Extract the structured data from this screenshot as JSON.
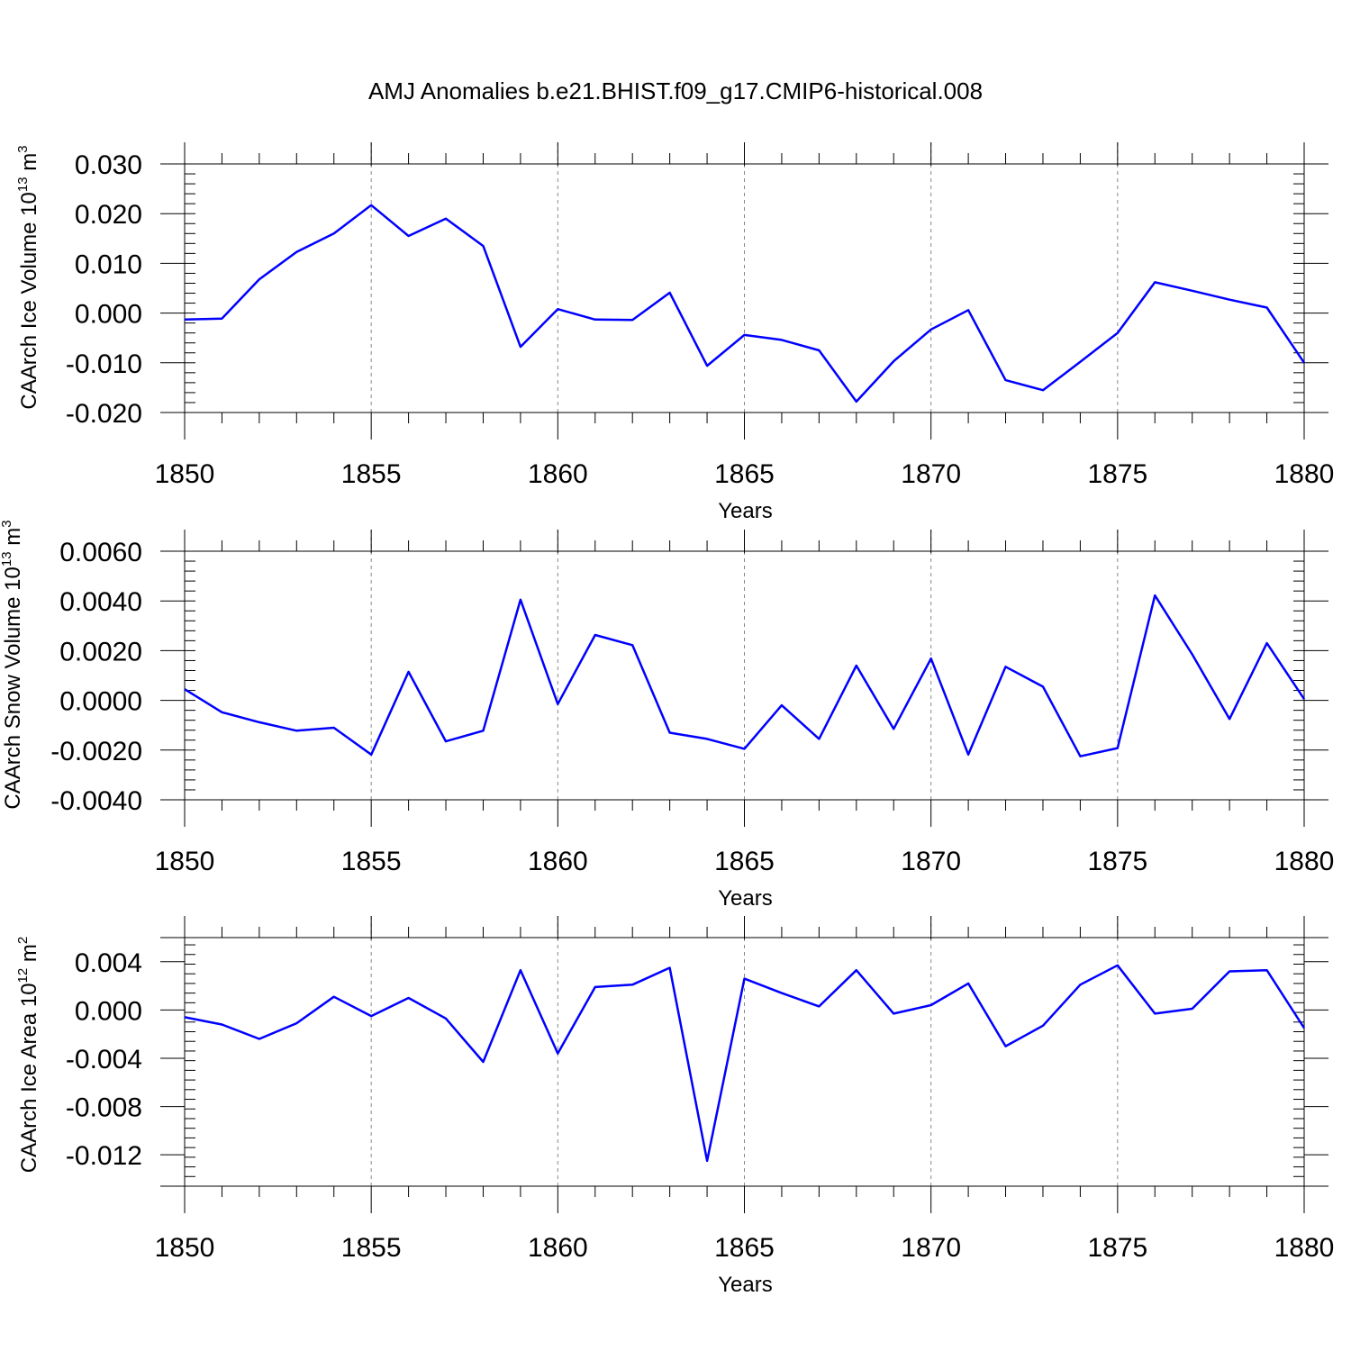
{
  "figure": {
    "title": "AMJ Anomalies b.e21.BHIST.f09_g17.CMIP6-historical.008"
  },
  "chart_data": [
    {
      "type": "line",
      "xlabel": "Years",
      "ylabel": "CAArch Ice Volume 10",
      "ylabel_sup": "13",
      "ylabel_unit": " m",
      "ylabel_unit_sup": "3",
      "xlim": [
        1850,
        1880
      ],
      "ylim": [
        -0.02,
        0.03
      ],
      "plot_ylim": [
        -0.02,
        0.03
      ],
      "xticks": [
        1850,
        1855,
        1860,
        1865,
        1870,
        1875,
        1880
      ],
      "yticks": [
        -0.02,
        -0.01,
        0.0,
        0.01,
        0.02,
        0.03
      ],
      "ytick_labels": [
        "-0.020",
        "-0.010",
        "0.000",
        "0.010",
        "0.020",
        "0.030"
      ],
      "grid": "dashed vertical at major x ticks",
      "line_color": "#0000ff",
      "x": [
        1850,
        1851,
        1852,
        1853,
        1854,
        1855,
        1856,
        1857,
        1858,
        1859,
        1860,
        1861,
        1862,
        1863,
        1864,
        1865,
        1866,
        1867,
        1868,
        1869,
        1870,
        1871,
        1872,
        1873,
        1874,
        1875,
        1876,
        1877,
        1878,
        1879,
        1880
      ],
      "values": [
        -0.0013,
        -0.0011,
        0.0068,
        0.0123,
        0.016,
        0.0217,
        0.0155,
        0.019,
        0.0135,
        -0.0068,
        0.0008,
        -0.0013,
        -0.0014,
        0.0041,
        -0.0106,
        -0.0044,
        -0.0054,
        -0.0075,
        -0.0178,
        -0.0097,
        -0.0033,
        0.0006,
        -0.0135,
        -0.0155,
        -0.0098,
        -0.004,
        0.0062,
        0.0045,
        0.0027,
        0.0011,
        -0.01
      ]
    },
    {
      "type": "line",
      "xlabel": "Years",
      "ylabel": "CAArch Snow Volume 10",
      "ylabel_sup": "13",
      "ylabel_unit": " m",
      "ylabel_unit_sup": "3",
      "xlim": [
        1850,
        1880
      ],
      "ylim": [
        -0.004,
        0.006
      ],
      "plot_ylim": [
        -0.004,
        0.006
      ],
      "xticks": [
        1850,
        1855,
        1860,
        1865,
        1870,
        1875,
        1880
      ],
      "yticks": [
        -0.004,
        -0.002,
        0.0,
        0.002,
        0.004,
        0.006
      ],
      "ytick_labels": [
        "-0.0040",
        "-0.0020",
        "0.0000",
        "0.0020",
        "0.0040",
        "0.0060"
      ],
      "grid": "dashed vertical at major x ticks",
      "line_color": "#0000ff",
      "x": [
        1850,
        1851,
        1852,
        1853,
        1854,
        1855,
        1856,
        1857,
        1858,
        1859,
        1860,
        1861,
        1862,
        1863,
        1864,
        1865,
        1866,
        1867,
        1868,
        1869,
        1870,
        1871,
        1872,
        1873,
        1874,
        1875,
        1876,
        1877,
        1878,
        1879,
        1880
      ],
      "values": [
        0.00045,
        -0.00048,
        -0.00088,
        -0.00122,
        -0.0011,
        -0.00218,
        0.00115,
        -0.00165,
        -0.00122,
        0.00405,
        -0.00015,
        0.00263,
        0.00222,
        -0.0013,
        -0.00155,
        -0.00195,
        -0.0002,
        -0.00155,
        0.0014,
        -0.00115,
        0.00168,
        -0.00218,
        0.00135,
        0.00055,
        -0.00225,
        -0.00192,
        0.00422,
        0.00185,
        -0.00075,
        0.0023,
        5e-05
      ]
    },
    {
      "type": "line",
      "xlabel": "Years",
      "ylabel": "CAArch Ice Area 10",
      "ylabel_sup": "12",
      "ylabel_unit": " m",
      "ylabel_unit_sup": "2",
      "xlim": [
        1850,
        1880
      ],
      "ylim": [
        -0.0146,
        0.006
      ],
      "plot_ylim": [
        -0.0146,
        0.006
      ],
      "xticks": [
        1850,
        1855,
        1860,
        1865,
        1870,
        1875,
        1880
      ],
      "yticks": [
        -0.012,
        -0.008,
        -0.004,
        0.0,
        0.004
      ],
      "ytick_labels": [
        "-0.012",
        "-0.008",
        "-0.004",
        "0.000",
        "0.004"
      ],
      "grid": "dashed vertical at major x ticks",
      "line_color": "#0000ff",
      "x": [
        1850,
        1851,
        1852,
        1853,
        1854,
        1855,
        1856,
        1857,
        1858,
        1859,
        1860,
        1861,
        1862,
        1863,
        1864,
        1865,
        1866,
        1867,
        1868,
        1869,
        1870,
        1871,
        1872,
        1873,
        1874,
        1875,
        1876,
        1877,
        1878,
        1879,
        1880
      ],
      "values": [
        -0.0006,
        -0.0012,
        -0.0024,
        -0.0011,
        0.0011,
        -0.0005,
        0.001,
        -0.0007,
        -0.0043,
        0.0033,
        -0.0036,
        0.0019,
        0.0021,
        0.0035,
        -0.0125,
        0.0026,
        0.0014,
        0.0003,
        0.0033,
        -0.0003,
        0.0004,
        0.0022,
        -0.003,
        -0.0013,
        0.0021,
        0.0037,
        -0.0003,
        0.0001,
        0.0032,
        0.0033,
        -0.0015
      ]
    }
  ]
}
